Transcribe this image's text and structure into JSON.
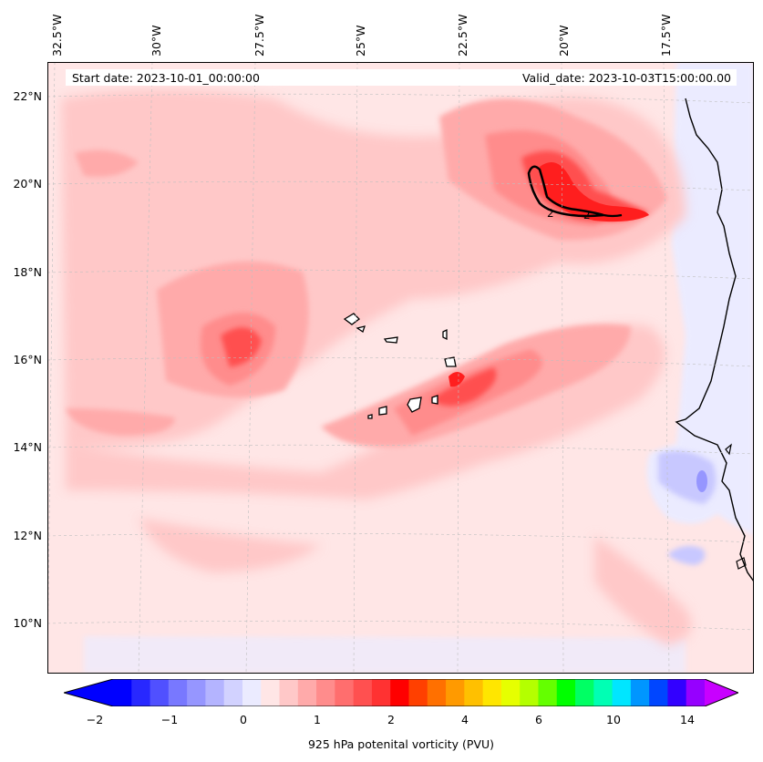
{
  "map": {
    "start_date": "Start date: 2023-10-01_00:00:00",
    "valid_date": "Valid_date: 2023-10-03T15:00:00.00",
    "lon_labels": [
      "32.5°W",
      "30°W",
      "27.5°W",
      "25°W",
      "22.5°W",
      "20°W",
      "17.5°W"
    ],
    "lat_labels": [
      "22°N",
      "20°N",
      "18°N",
      "16°N",
      "14°N",
      "12°N",
      "10°N"
    ],
    "contour_labels": [
      "2",
      "2"
    ],
    "colors": {
      "background_light": "#ffe6e6",
      "field_mid": "#ffb0b0",
      "field_strong": "#ff6464",
      "field_peak": "#ff1e1e",
      "negative_light": "#ebebff",
      "negative_mid": "#c8c8ff"
    }
  },
  "colorbar": {
    "label": "925 hPa potenital vorticity (PVU)",
    "tick_labels": [
      "−2",
      "−1",
      "0",
      "1",
      "2",
      "4",
      "6",
      "10",
      "14"
    ],
    "colors": [
      "#0000ff",
      "#2828ff",
      "#5050ff",
      "#7878ff",
      "#9696ff",
      "#b4b4ff",
      "#d2d2ff",
      "#ebebff",
      "#ffe6e6",
      "#ffc8c8",
      "#ffaaaa",
      "#ff8c8c",
      "#ff6e6e",
      "#ff5050",
      "#ff3232",
      "#ff0000",
      "#ff4000",
      "#ff7000",
      "#ff9a00",
      "#ffc000",
      "#ffe600",
      "#e6ff00",
      "#b4ff00",
      "#64ff00",
      "#00ff00",
      "#00ff64",
      "#00ffb4",
      "#00e6ff",
      "#0096ff",
      "#0046ff",
      "#3200ff",
      "#9600ff"
    ]
  }
}
